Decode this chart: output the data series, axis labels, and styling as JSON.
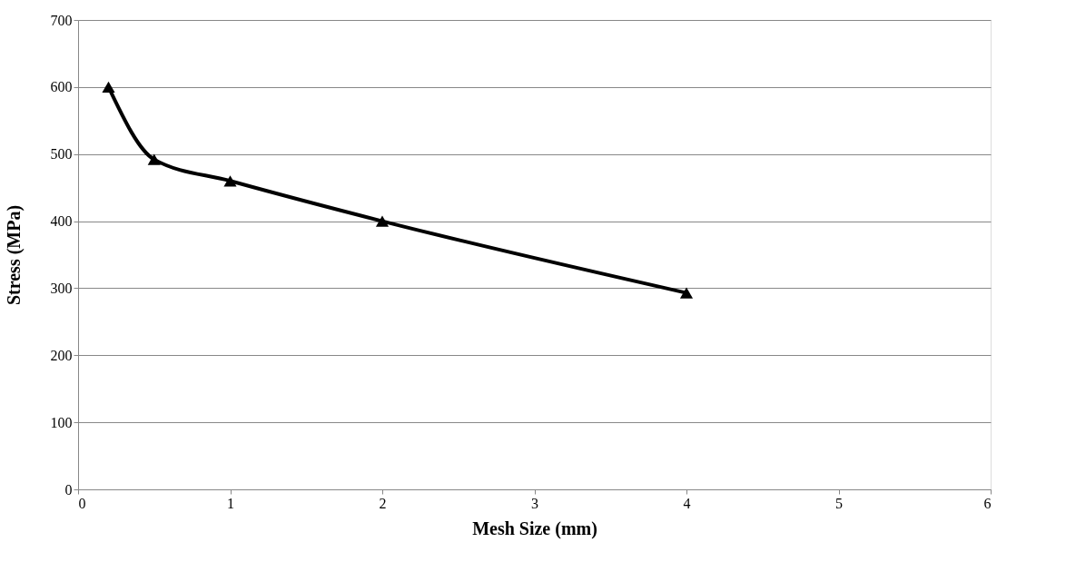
{
  "chart_data": {
    "type": "line",
    "xlabel": "Mesh Size (mm)",
    "ylabel": "Stress (MPa)",
    "x": [
      0.2,
      0.5,
      1,
      2,
      4
    ],
    "series": [
      {
        "color": "#000000",
        "values": [
          600,
          492,
          460,
          400,
          293
        ]
      }
    ],
    "xlim": [
      0,
      6
    ],
    "xticks": [
      0,
      1,
      2,
      3,
      4,
      5,
      6
    ],
    "ylim": [
      0,
      700
    ],
    "yticks": [
      0,
      100,
      200,
      300,
      400,
      500,
      600,
      700
    ],
    "grid": "y",
    "marker": "triangle",
    "line_style": "solid"
  }
}
